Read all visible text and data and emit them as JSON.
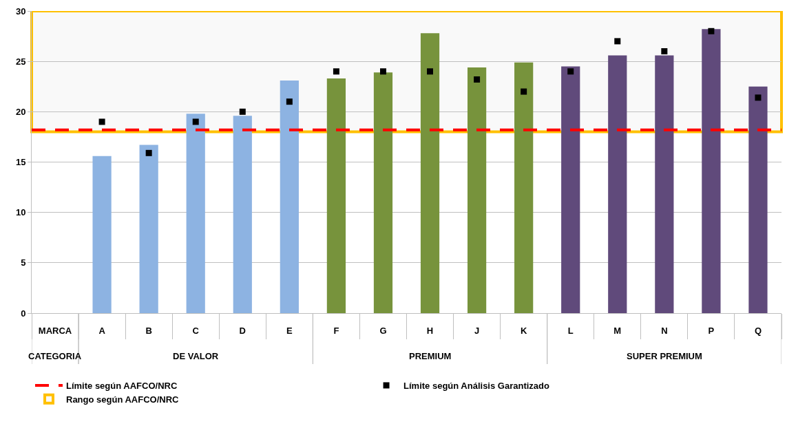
{
  "chart_data": {
    "type": "bar",
    "categories": [
      "MARCA",
      "A",
      "B",
      "C",
      "D",
      "E",
      "F",
      "G",
      "H",
      "J",
      "K",
      "L",
      "M",
      "N",
      "P",
      "Q"
    ],
    "series": [
      {
        "colors": [
          null,
          "#8db3e2",
          "#8db3e2",
          "#8db3e2",
          "#8db3e2",
          "#8db3e2",
          "#77933c",
          "#77933c",
          "#77933c",
          "#77933c",
          "#77933c",
          "#604a7b",
          "#604a7b",
          "#604a7b",
          "#604a7b",
          "#604a7b"
        ],
        "values": [
          null,
          15.6,
          16.7,
          19.8,
          19.6,
          23.1,
          23.3,
          23.9,
          27.8,
          24.4,
          24.9,
          24.5,
          25.6,
          25.6,
          28.2,
          22.5
        ]
      },
      {
        "type": "scatter",
        "name": "Límite según Análisis Garantizado",
        "color": "#000000",
        "marker": "square",
        "values": [
          null,
          19.0,
          15.9,
          19.0,
          20.0,
          21.0,
          24.0,
          24.0,
          24.0,
          23.2,
          22.0,
          24.0,
          27.0,
          26.0,
          28.0,
          21.4
        ]
      }
    ],
    "annotations": [
      "CATEGORIA",
      "DE VALOR",
      "PREMIUM",
      "SUPER PREMIUM"
    ],
    "ylim": [
      0,
      30
    ],
    "yticks": [
      0,
      5,
      10,
      15,
      20,
      25,
      30
    ],
    "grid": "y",
    "ref_lines": [
      {
        "axis": "y",
        "value": 18.2,
        "label": "Límite según AAFCO/NRC",
        "color": "#ff0000",
        "line_style": "dashed"
      }
    ],
    "bands": [
      {
        "axis": "y",
        "from": 18,
        "to": 30,
        "label": "Rango según AAFCO/NRC",
        "color": "#ffc000"
      }
    ],
    "legend": "bottom left"
  }
}
